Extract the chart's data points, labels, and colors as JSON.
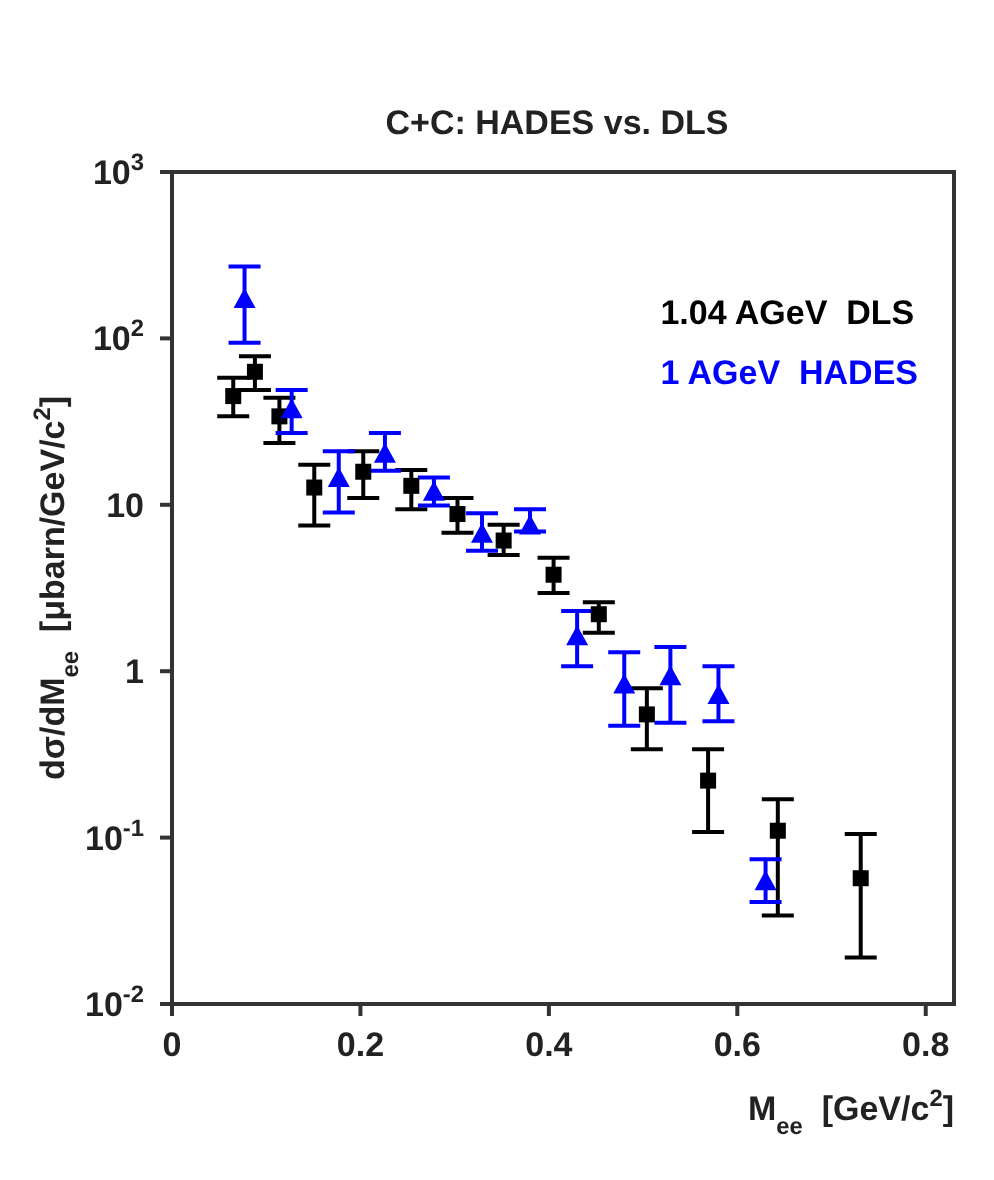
{
  "chart_data": {
    "type": "scatter",
    "title": "C+C:  HADES vs. DLS",
    "xlabel": "M$_{ee}$  [GeV/c$^{2}$]",
    "ylabel": "dσ/dM$_{ee}$  [μbarn/GeV/c$^{2}$]",
    "xlim": [
      0,
      0.83
    ],
    "xticks": [
      0,
      0.2,
      0.4,
      0.6,
      0.8
    ],
    "ylim": [
      0.01,
      1000
    ],
    "yticks": [
      {
        "value": 0.01,
        "label": "10$^{-2}$"
      },
      {
        "value": 0.1,
        "label": "10$^{-1}$"
      },
      1,
      10,
      {
        "value": 100,
        "label": "10$^{2}$"
      },
      {
        "value": 1000,
        "label": "10$^{3}$"
      }
    ],
    "log": "y",
    "grid": false,
    "legend": "top right",
    "series": [
      {
        "name": "1.04 AGeV  DLS",
        "color": "#000000",
        "marker": "square",
        "x": [
          0.065,
          0.088,
          0.114,
          0.151,
          0.203,
          0.254,
          0.303,
          0.352,
          0.405,
          0.453,
          0.504,
          0.569,
          0.643,
          0.731
        ],
        "values": [
          45,
          63,
          34,
          12.7,
          15.8,
          13,
          8.8,
          6.1,
          3.8,
          2.2,
          0.55,
          0.22,
          0.11,
          0.057
        ],
        "errors": [
          [
            34,
            58
          ],
          [
            49,
            78
          ],
          [
            23.5,
            44
          ],
          [
            7.5,
            17.4
          ],
          [
            11,
            21
          ],
          [
            9.4,
            16.2
          ],
          [
            6.8,
            11
          ],
          [
            5,
            7.6
          ],
          [
            2.95,
            4.8
          ],
          [
            1.7,
            2.6
          ],
          [
            0.34,
            0.79
          ],
          [
            0.108,
            0.34
          ],
          [
            0.034,
            0.17
          ],
          [
            0.019,
            0.105
          ]
        ]
      },
      {
        "name": "1 AGeV  HADES",
        "color": "#0000ff",
        "marker": "triangle",
        "x": [
          0.077,
          0.127,
          0.177,
          0.226,
          0.278,
          0.329,
          0.38,
          0.43,
          0.48,
          0.529,
          0.58,
          0.63
        ],
        "values": [
          170,
          37,
          14.3,
          20,
          11.8,
          6.6,
          7.4,
          1.6,
          0.82,
          0.92,
          0.71,
          0.054
        ],
        "errors": [
          [
            94,
            270
          ],
          [
            27,
            49
          ],
          [
            9,
            21
          ],
          [
            16,
            27
          ],
          [
            9.9,
            14.6
          ],
          [
            5.3,
            8.9
          ],
          [
            6.9,
            9.4
          ],
          [
            1.07,
            2.3
          ],
          [
            0.47,
            1.3
          ],
          [
            0.49,
            1.4
          ],
          [
            0.5,
            1.07
          ],
          [
            0.041,
            0.074
          ]
        ]
      }
    ]
  }
}
